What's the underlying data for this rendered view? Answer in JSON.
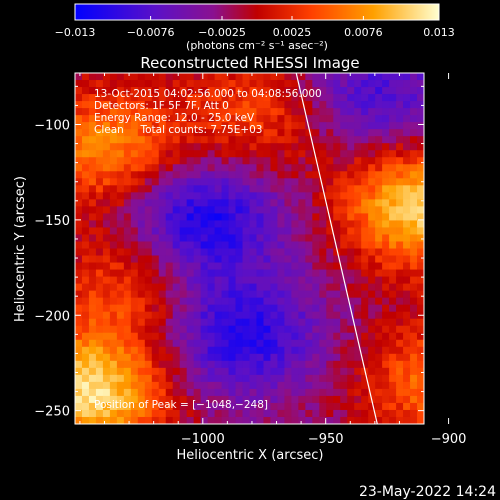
{
  "chart_data": {
    "type": "heatmap",
    "title": "Reconstructed RHESSI Image",
    "xlabel": "Heliocentric X (arcsec)",
    "ylabel": "Heliocentric Y (arcsec)",
    "xlim": [
      -1052,
      -910
    ],
    "ylim": [
      -257,
      -73
    ],
    "x_ticks": [
      -1000,
      -950,
      -900
    ],
    "x_tick_labels": [
      "−1000",
      "−950",
      "−900"
    ],
    "y_ticks": [
      -100,
      -150,
      -200,
      -250
    ],
    "y_tick_labels": [
      "−100",
      "−150",
      "−200",
      "−250"
    ],
    "colorbar": {
      "min": -0.013,
      "max": 0.013,
      "ticks": [
        -0.013,
        -0.0076,
        -0.0025,
        0.0025,
        0.0076,
        0.013
      ],
      "tick_labels": [
        "−0.013",
        "−0.0076",
        "−0.0025",
        "0.0025",
        "0.0076",
        "0.013"
      ],
      "unit_label": "(photons cm⁻² s⁻¹ asec⁻²)",
      "colormap": "blue-purple-red-orange-yellow-white"
    },
    "info_lines": [
      "13-Oct-2015 04:02:56.000 to 04:08:56.000",
      "Detectors: 1F 5F 7F, Att 0",
      "Energy Range: 12.0 - 25.0 keV",
      "Clean     Total counts: 7.75E+03"
    ],
    "peak_label": "Position of Peak = [−1048,−248]",
    "peak_position": [
      -1048,
      -248
    ],
    "limb_line": [
      [
        -962,
        -73
      ],
      [
        -929,
        -257
      ]
    ],
    "sources": [
      {
        "x": -912,
        "y": -143,
        "strength": 1.0
      },
      {
        "x": -1046,
        "y": -240,
        "strength": 1.05
      },
      {
        "x": -1040,
        "y": -112,
        "strength": 0.7
      },
      {
        "x": -978,
        "y": -95,
        "strength": 0.45
      },
      {
        "x": -905,
        "y": -235,
        "strength": 0.6
      },
      {
        "x": -1030,
        "y": -185,
        "strength": 0.45
      }
    ],
    "holes": [
      {
        "x": -1000,
        "y": -150,
        "strength": -0.75
      },
      {
        "x": -985,
        "y": -210,
        "strength": -0.7
      },
      {
        "x": -930,
        "y": -85,
        "strength": -0.5
      }
    ]
  },
  "footer": {
    "timestamp": "23-May-2022 14:24"
  }
}
